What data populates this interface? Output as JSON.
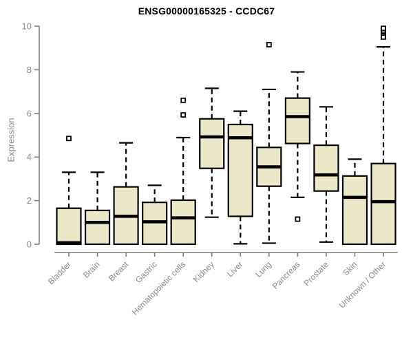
{
  "chart_data": {
    "type": "boxplot",
    "title": "ENSG00000165325 - CCDC67",
    "ylabel": "Expression",
    "xlabel": "",
    "ylim": [
      0,
      10
    ],
    "yticks": [
      0,
      2,
      4,
      6,
      8,
      10
    ],
    "grid": false,
    "legend": false,
    "colors": {
      "box_fill": "#EDE7C9",
      "box_stroke": "#000000",
      "median": "#000000",
      "whisker": "#000000",
      "outlier_stroke": "#000000",
      "axis_line": "#7f7f7f",
      "tick_label": "#8a8a8a",
      "title": "#000000",
      "background": "#ffffff"
    },
    "categories": [
      "Bladder",
      "Brain",
      "Breast",
      "Gastric",
      "Hematopoietic cells",
      "Kidney",
      "Liver",
      "Lung",
      "Pancreas",
      "Prostate",
      "Skin",
      "Unknown / Other"
    ],
    "series": [
      {
        "name": "Bladder",
        "whisker_low": 0,
        "q1": 0,
        "median": 0.07,
        "q3": 1.65,
        "whisker_high": 3.3,
        "outliers": [
          4.85
        ]
      },
      {
        "name": "Brain",
        "whisker_low": 0,
        "q1": 0,
        "median": 1.0,
        "q3": 1.55,
        "whisker_high": 3.3,
        "outliers": []
      },
      {
        "name": "Breast",
        "whisker_low": 0,
        "q1": 0,
        "median": 1.28,
        "q3": 2.63,
        "whisker_high": 4.65,
        "outliers": []
      },
      {
        "name": "Gastric",
        "whisker_low": 0,
        "q1": 0,
        "median": 1.03,
        "q3": 1.92,
        "whisker_high": 2.7,
        "outliers": []
      },
      {
        "name": "Hematopoietic cells",
        "whisker_low": 0,
        "q1": 0,
        "median": 1.21,
        "q3": 2.02,
        "whisker_high": 4.89,
        "outliers": [
          5.93,
          6.6
        ]
      },
      {
        "name": "Kidney",
        "whisker_low": 1.24,
        "q1": 3.48,
        "median": 4.92,
        "q3": 5.75,
        "whisker_high": 7.15,
        "outliers": []
      },
      {
        "name": "Liver",
        "whisker_low": 0.02,
        "q1": 1.28,
        "median": 4.88,
        "q3": 5.49,
        "whisker_high": 6.1,
        "outliers": []
      },
      {
        "name": "Lung",
        "whisker_low": 0.05,
        "q1": 2.66,
        "median": 3.55,
        "q3": 4.44,
        "whisker_high": 7.1,
        "outliers": [
          9.15
        ]
      },
      {
        "name": "Pancreas",
        "whisker_low": 2.15,
        "q1": 4.62,
        "median": 5.85,
        "q3": 6.7,
        "whisker_high": 7.9,
        "outliers": [
          1.15
        ]
      },
      {
        "name": "Prostate",
        "whisker_low": 0.1,
        "q1": 2.44,
        "median": 3.18,
        "q3": 4.54,
        "whisker_high": 6.3,
        "outliers": []
      },
      {
        "name": "Skin",
        "whisker_low": 0,
        "q1": 0,
        "median": 2.15,
        "q3": 3.13,
        "whisker_high": 3.9,
        "outliers": []
      },
      {
        "name": "Unknown / Other",
        "whisker_low": 0,
        "q1": 0,
        "median": 1.95,
        "q3": 3.7,
        "whisker_high": 9.05,
        "outliers": [
          9.5,
          9.68,
          9.75,
          9.82,
          9.9
        ]
      }
    ]
  }
}
